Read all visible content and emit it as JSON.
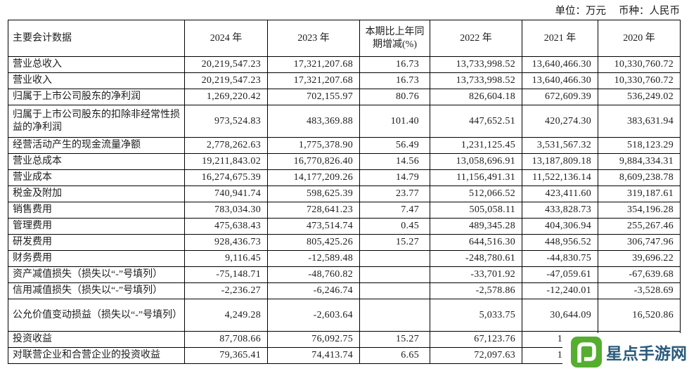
{
  "meta": {
    "unit_label": "单位：万元",
    "currency_label": "币种：人民币"
  },
  "table": {
    "header": [
      "主要会计数据",
      "2024 年",
      "2023 年",
      "本期比上年同期增减(%)",
      "2022 年",
      "2021 年",
      "2020 年"
    ],
    "rows": [
      {
        "label": "营业总收入",
        "v2024": "20,219,547.23",
        "v2023": "17,321,207.68",
        "pct": "16.73",
        "v2022": "13,733,998.52",
        "v2021": "13,640,466.30",
        "v2020": "10,330,760.72"
      },
      {
        "label": "营业收入",
        "v2024": "20,219,547.23",
        "v2023": "17,321,207.68",
        "pct": "16.73",
        "v2022": "13,733,998.52",
        "v2021": "13,640,466.30",
        "v2020": "10,330,760.72"
      },
      {
        "label": "归属于上市公司股东的净利润",
        "v2024": "1,269,220.42",
        "v2023": "702,155.97",
        "pct": "80.76",
        "v2022": "826,604.18",
        "v2021": "672,609.39",
        "v2020": "536,249.02"
      },
      {
        "label": "归属于上市公司股东的扣除非经常性损益的净利润",
        "tall": true,
        "v2024": "973,524.83",
        "v2023": "483,369.88",
        "pct": "101.40",
        "v2022": "447,652.51",
        "v2021": "420,274.30",
        "v2020": "383,631.94"
      },
      {
        "label": "经营活动产生的现金流量净额",
        "v2024": "2,778,262.63",
        "v2023": "1,775,378.90",
        "pct": "56.49",
        "v2022": "1,231,125.45",
        "v2021": "3,531,567.32",
        "v2020": "518,123.29"
      },
      {
        "label": "营业总成本",
        "v2024": "19,211,843.02",
        "v2023": "16,770,826.40",
        "pct": "14.56",
        "v2022": "13,058,696.91",
        "v2021": "13,187,809.18",
        "v2020": "9,884,334.31"
      },
      {
        "label": "营业成本",
        "v2024": "16,274,675.39",
        "v2023": "14,177,209.26",
        "pct": "14.79",
        "v2022": "11,156,491.31",
        "v2021": "11,522,136.14",
        "v2020": "8,609,238.78"
      },
      {
        "label": "税金及附加",
        "v2024": "740,941.74",
        "v2023": "598,625.39",
        "pct": "23.77",
        "v2022": "512,066.52",
        "v2021": "423,411.60",
        "v2020": "319,187.61"
      },
      {
        "label": "销售费用",
        "v2024": "783,034.30",
        "v2023": "728,641.23",
        "pct": "7.47",
        "v2022": "505,058.11",
        "v2021": "433,828.73",
        "v2020": "354,196.28"
      },
      {
        "label": "管理费用",
        "v2024": "475,638.43",
        "v2023": "473,514.74",
        "pct": "0.45",
        "v2022": "489,345.28",
        "v2021": "404,306.94",
        "v2020": "255,267.46"
      },
      {
        "label": "研发费用",
        "v2024": "928,436.73",
        "v2023": "805,425.26",
        "pct": "15.27",
        "v2022": "644,516.30",
        "v2021": "448,956.52",
        "v2020": "306,747.96"
      },
      {
        "label": "财务费用",
        "v2024": "9,116.45",
        "v2023": "-12,589.48",
        "pct": "",
        "v2022": "-248,780.61",
        "v2021": "-44,830.75",
        "v2020": "39,696.22"
      },
      {
        "label": "资产减值损失（损失以“-”号填列）",
        "v2024": "-75,148.71",
        "v2023": "-48,760.82",
        "pct": "",
        "v2022": "-33,701.92",
        "v2021": "-47,059.61",
        "v2020": "-67,639.68"
      },
      {
        "label": "信用减值损失（损失以“-”号填列）",
        "v2024": "-2,236.27",
        "v2023": "-6,246.74",
        "pct": "",
        "v2022": "-2,578.86",
        "v2021": "-12,240.01",
        "v2020": "-3,528.69"
      },
      {
        "label": "公允价值变动损益（损失以“-”号填列）",
        "tall": true,
        "v2024": "4,249.28",
        "v2023": "-2,603.64",
        "pct": "",
        "v2022": "5,033.75",
        "v2021": "30,644.09",
        "v2020": "16,520.86"
      },
      {
        "label": "投资收益",
        "clipped": true,
        "v2024": "87,708.66",
        "v2023": "76,092.75",
        "pct": "15.27",
        "v2022": "67,123.76",
        "v2021": "1",
        "v2020": ""
      },
      {
        "label": "对联营企业和合营企业的投资收益",
        "clipped": true,
        "v2024": "79,365.41",
        "v2023": "74,413.74",
        "pct": "6.65",
        "v2022": "72,097.63",
        "v2021": "1",
        "v2020": ""
      }
    ]
  },
  "watermark": {
    "text": "星点手游网",
    "icon": "interlocked-squares-logo",
    "icon_color": "#55AE2F",
    "text_color": "#2B5B7C"
  }
}
